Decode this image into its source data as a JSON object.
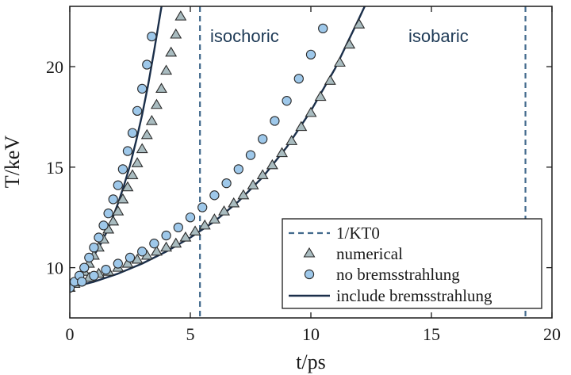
{
  "chart_data": {
    "type": "scatter",
    "title": "",
    "xlabel": "t/ps",
    "ylabel": "T/keV",
    "xlim": [
      0,
      20
    ],
    "ylim": [
      7.5,
      23
    ],
    "xticks": [
      0,
      5,
      10,
      15,
      20
    ],
    "yticks": [
      10,
      15,
      20
    ],
    "grid": false,
    "legend": "bottom-right",
    "colors": {
      "line": "#1b2f4a",
      "dashed": "#41698c",
      "circle_fill": "#9ec8ea",
      "triangle_fill": "#a9bcc0",
      "marker_edge": "#2a2a2a"
    },
    "legend_entries": [
      {
        "label": "1/KT0",
        "marker": "dashed"
      },
      {
        "label": "numerical",
        "marker": "triangle"
      },
      {
        "label": "no bremsstrahlung",
        "marker": "circle"
      },
      {
        "label": "include bremsstrahlung",
        "marker": "line"
      }
    ],
    "annotations": [
      {
        "text": "isochoric",
        "x": 5.9,
        "y": 21.3
      },
      {
        "text": "isobaric",
        "x": 14.1,
        "y": 21.3
      }
    ],
    "vlines": [
      5.4,
      18.9
    ],
    "groups": [
      {
        "regime": "isochoric",
        "numerical": [
          [
            0.0,
            9.0
          ],
          [
            0.2,
            9.2
          ],
          [
            0.4,
            9.5
          ],
          [
            0.6,
            9.8
          ],
          [
            0.8,
            10.2
          ],
          [
            1.0,
            10.6
          ],
          [
            1.2,
            11.0
          ],
          [
            1.4,
            11.4
          ],
          [
            1.6,
            11.9
          ],
          [
            1.8,
            12.3
          ],
          [
            2.0,
            12.8
          ],
          [
            2.2,
            13.4
          ],
          [
            2.4,
            14.0
          ],
          [
            2.6,
            14.6
          ],
          [
            2.8,
            15.2
          ],
          [
            3.0,
            15.9
          ],
          [
            3.2,
            16.6
          ],
          [
            3.4,
            17.3
          ],
          [
            3.6,
            18.1
          ],
          [
            3.8,
            18.9
          ],
          [
            4.0,
            19.8
          ],
          [
            4.2,
            20.7
          ],
          [
            4.4,
            21.6
          ],
          [
            4.6,
            22.5
          ]
        ],
        "no_bremsstrahlung": [
          [
            0.0,
            9.0
          ],
          [
            0.2,
            9.3
          ],
          [
            0.4,
            9.6
          ],
          [
            0.6,
            10.0
          ],
          [
            0.8,
            10.5
          ],
          [
            1.0,
            11.0
          ],
          [
            1.2,
            11.5
          ],
          [
            1.4,
            12.1
          ],
          [
            1.6,
            12.7
          ],
          [
            1.8,
            13.4
          ],
          [
            2.0,
            14.1
          ],
          [
            2.2,
            14.9
          ],
          [
            2.4,
            15.8
          ],
          [
            2.6,
            16.7
          ],
          [
            2.8,
            17.8
          ],
          [
            3.0,
            18.9
          ],
          [
            3.2,
            20.1
          ],
          [
            3.4,
            21.5
          ]
        ],
        "include_bremsstrahlung": [
          [
            0.0,
            9.0
          ],
          [
            0.25,
            9.3
          ],
          [
            0.5,
            9.7
          ],
          [
            0.75,
            10.1
          ],
          [
            1.0,
            10.6
          ],
          [
            1.25,
            11.1
          ],
          [
            1.5,
            11.7
          ],
          [
            1.75,
            12.4
          ],
          [
            2.0,
            13.2
          ],
          [
            2.25,
            14.1
          ],
          [
            2.5,
            15.1
          ],
          [
            2.75,
            16.3
          ],
          [
            3.0,
            17.6
          ],
          [
            3.25,
            19.1
          ],
          [
            3.5,
            20.8
          ],
          [
            3.75,
            22.6
          ],
          [
            3.85,
            23.3
          ]
        ]
      },
      {
        "regime": "isobaric",
        "numerical": [
          [
            0.4,
            9.3
          ],
          [
            0.8,
            9.5
          ],
          [
            1.2,
            9.7
          ],
          [
            1.6,
            9.8
          ],
          [
            2.0,
            10.0
          ],
          [
            2.4,
            10.2
          ],
          [
            2.8,
            10.4
          ],
          [
            3.2,
            10.6
          ],
          [
            3.6,
            10.8
          ],
          [
            4.0,
            11.0
          ],
          [
            4.4,
            11.2
          ],
          [
            4.8,
            11.5
          ],
          [
            5.2,
            11.8
          ],
          [
            5.6,
            12.1
          ],
          [
            6.0,
            12.4
          ],
          [
            6.4,
            12.8
          ],
          [
            6.8,
            13.2
          ],
          [
            7.2,
            13.6
          ],
          [
            7.6,
            14.1
          ],
          [
            8.0,
            14.6
          ],
          [
            8.4,
            15.1
          ],
          [
            8.8,
            15.7
          ],
          [
            9.2,
            16.3
          ],
          [
            9.6,
            17.0
          ],
          [
            10.0,
            17.7
          ],
          [
            10.4,
            18.5
          ],
          [
            10.8,
            19.3
          ],
          [
            11.2,
            20.2
          ],
          [
            11.6,
            21.1
          ],
          [
            12.0,
            22.1
          ]
        ],
        "no_bremsstrahlung": [
          [
            0.5,
            9.3
          ],
          [
            1.0,
            9.6
          ],
          [
            1.5,
            9.9
          ],
          [
            2.0,
            10.2
          ],
          [
            2.5,
            10.5
          ],
          [
            3.0,
            10.8
          ],
          [
            3.5,
            11.2
          ],
          [
            4.0,
            11.6
          ],
          [
            4.5,
            12.0
          ],
          [
            5.0,
            12.5
          ],
          [
            5.5,
            13.0
          ],
          [
            6.0,
            13.6
          ],
          [
            6.5,
            14.2
          ],
          [
            7.0,
            14.9
          ],
          [
            7.5,
            15.6
          ],
          [
            8.0,
            16.4
          ],
          [
            8.5,
            17.3
          ],
          [
            9.0,
            18.3
          ],
          [
            9.5,
            19.4
          ],
          [
            10.0,
            20.6
          ],
          [
            10.5,
            21.9
          ]
        ],
        "include_bremsstrahlung": [
          [
            0.0,
            9.0
          ],
          [
            1.0,
            9.3
          ],
          [
            2.0,
            9.7
          ],
          [
            3.0,
            10.2
          ],
          [
            4.0,
            10.8
          ],
          [
            5.0,
            11.5
          ],
          [
            6.0,
            12.3
          ],
          [
            7.0,
            13.3
          ],
          [
            8.0,
            14.5
          ],
          [
            9.0,
            16.0
          ],
          [
            10.0,
            17.8
          ],
          [
            11.0,
            19.9
          ],
          [
            12.0,
            22.4
          ],
          [
            12.35,
            23.3
          ]
        ]
      }
    ]
  }
}
